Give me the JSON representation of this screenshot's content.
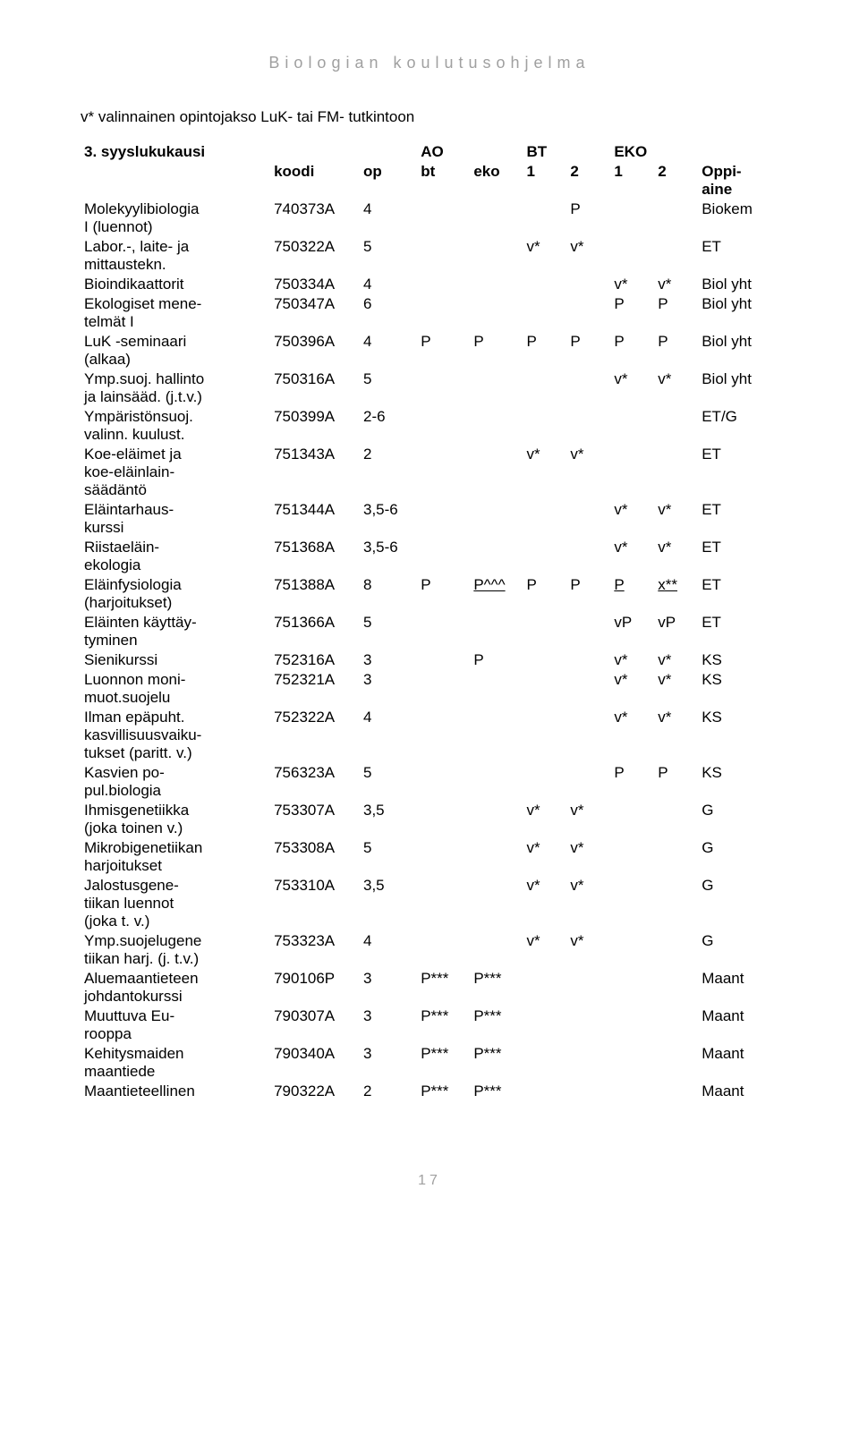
{
  "page": {
    "header": "Biologian koulutusohjelma",
    "intro": "v* valinnainen opintojakso LuK- tai FM- tutkintoon",
    "tableTitle": "3. syyslukukausi",
    "pageNumber": "17",
    "groupHeaders": {
      "ao": "AO",
      "bt": "BT",
      "eko": "EKO"
    },
    "columns": {
      "name": "",
      "koodi": "koodi",
      "op": "op",
      "bt": "bt",
      "eko": "eko",
      "c1a": "1",
      "c2a": "2",
      "c1b": "1",
      "c2b": "2",
      "oppi": "Oppi-\naine"
    },
    "rows": [
      {
        "name": "Molekyylibiologia\nI (luennot)",
        "koodi": "740373A",
        "op": "4",
        "bt": "",
        "eko": "",
        "c1a": "",
        "c2a": "P",
        "c1b": "",
        "c2b": "",
        "oppi": "Biokem"
      },
      {
        "name": "Labor.-, laite- ja\nmittaustekn.",
        "koodi": "750322A",
        "op": "5",
        "bt": "",
        "eko": "",
        "c1a": "v*",
        "c2a": "v*",
        "c1b": "",
        "c2b": "",
        "oppi": "ET"
      },
      {
        "name": "Bioindikaattorit",
        "koodi": "750334A",
        "op": "4",
        "bt": "",
        "eko": "",
        "c1a": "",
        "c2a": "",
        "c1b": "v*",
        "c2b": "v*",
        "oppi": "Biol yht"
      },
      {
        "name": "Ekologiset mene-\ntelmät I",
        "koodi": "750347A",
        "op": "6",
        "bt": "",
        "eko": "",
        "c1a": "",
        "c2a": "",
        "c1b": "P",
        "c2b": "P",
        "oppi": "Biol yht"
      },
      {
        "name": "LuK -seminaari\n(alkaa)",
        "koodi": "750396A",
        "op": "4",
        "bt": "P",
        "eko": "P",
        "c1a": "P",
        "c2a": "P",
        "c1b": "P",
        "c2b": "P",
        "oppi": "Biol yht"
      },
      {
        "name": "Ymp.suoj. hallinto\nja lainsääd. (j.t.v.)",
        "koodi": "750316A",
        "op": "5",
        "bt": "",
        "eko": "",
        "c1a": "",
        "c2a": "",
        "c1b": "v*",
        "c2b": "v*",
        "oppi": "Biol yht"
      },
      {
        "name": "Ympäristönsuoj.\nvalinn. kuulust.",
        "koodi": "750399A",
        "op": "2-6",
        "bt": "",
        "eko": "",
        "c1a": "",
        "c2a": "",
        "c1b": "",
        "c2b": "",
        "oppi": "ET/G"
      },
      {
        "name": "Koe-eläimet ja\nkoe-eläinlain-\nsäädäntö",
        "koodi": "751343A",
        "op": "2",
        "bt": "",
        "eko": "",
        "c1a": "v*",
        "c2a": "v*",
        "c1b": "",
        "c2b": "",
        "oppi": "ET"
      },
      {
        "name": "Eläintarhaus-\nkurssi",
        "koodi": "751344A",
        "op": "3,5-6",
        "bt": "",
        "eko": "",
        "c1a": "",
        "c2a": "",
        "c1b": "v*",
        "c2b": "v*",
        "oppi": "ET"
      },
      {
        "name": "Riistaeläin-\nekologia",
        "koodi": "751368A",
        "op": "3,5-6",
        "bt": "",
        "eko": "",
        "c1a": "",
        "c2a": "",
        "c1b": "v*",
        "c2b": "v*",
        "oppi": "ET"
      },
      {
        "name": "Eläinfysiologia\n(harjoitukset)",
        "koodi": "751388A",
        "op": "8",
        "bt": "P",
        "eko": "P^^^",
        "c1a": "P",
        "c2a": "P",
        "c1b": "P",
        "c2b": "x**",
        "oppi": "ET",
        "underline": [
          "eko",
          "c1b",
          "c2b"
        ]
      },
      {
        "name": "Eläinten käyttäy-\ntyminen",
        "koodi": "751366A",
        "op": "5",
        "bt": "",
        "eko": "",
        "c1a": "",
        "c2a": "",
        "c1b": "vP",
        "c2b": "vP",
        "oppi": "ET"
      },
      {
        "name": "Sienikurssi",
        "koodi": "752316A",
        "op": "3",
        "bt": "",
        "eko": "P",
        "c1a": "",
        "c2a": "",
        "c1b": "v*",
        "c2b": "v*",
        "oppi": "KS"
      },
      {
        "name": "Luonnon moni-\nmuot.suojelu",
        "koodi": "752321A",
        "op": "3",
        "bt": "",
        "eko": "",
        "c1a": "",
        "c2a": "",
        "c1b": "v*",
        "c2b": "v*",
        "oppi": "KS"
      },
      {
        "name": "Ilman epäpuht.\nkasvillisuusvaiku-\ntukset (paritt. v.)",
        "koodi": "752322A",
        "op": "4",
        "bt": "",
        "eko": "",
        "c1a": "",
        "c2a": "",
        "c1b": "v*",
        "c2b": "v*",
        "oppi": "KS"
      },
      {
        "name": "Kasvien po-\npul.biologia",
        "koodi": "756323A",
        "op": "5",
        "bt": "",
        "eko": "",
        "c1a": "",
        "c2a": "",
        "c1b": "P",
        "c2b": "P",
        "oppi": "KS"
      },
      {
        "name": "Ihmisgenetiikka\n(joka toinen v.)",
        "koodi": "753307A",
        "op": "3,5",
        "bt": "",
        "eko": "",
        "c1a": "v*",
        "c2a": "v*",
        "c1b": "",
        "c2b": "",
        "oppi": "G"
      },
      {
        "name": "Mikrobigenetiikan\nharjoitukset",
        "koodi": "753308A",
        "op": "5",
        "bt": "",
        "eko": "",
        "c1a": "v*",
        "c2a": "v*",
        "c1b": "",
        "c2b": "",
        "oppi": "G"
      },
      {
        "name": "Jalostusgene-\ntiikan luennot\n(joka t. v.)",
        "koodi": "753310A",
        "op": "3,5",
        "bt": "",
        "eko": "",
        "c1a": "v*",
        "c2a": "v*",
        "c1b": "",
        "c2b": "",
        "oppi": "G"
      },
      {
        "name": "Ymp.suojelugene\ntiikan harj. (j. t.v.)",
        "koodi": "753323A",
        "op": "4",
        "bt": "",
        "eko": "",
        "c1a": "v*",
        "c2a": "v*",
        "c1b": "",
        "c2b": "",
        "oppi": "G"
      },
      {
        "name": "Aluemaantieteen\njohdantokurssi",
        "koodi": "790106P",
        "op": "3",
        "bt": "P***",
        "eko": "P***",
        "c1a": "",
        "c2a": "",
        "c1b": "",
        "c2b": "",
        "oppi": "Maant"
      },
      {
        "name": "Muuttuva Eu-\nrooppa",
        "koodi": "790307A",
        "op": "3",
        "bt": "P***",
        "eko": "P***",
        "c1a": "",
        "c2a": "",
        "c1b": "",
        "c2b": "",
        "oppi": "Maant"
      },
      {
        "name": "Kehitysmaiden\nmaantiede",
        "koodi": "790340A",
        "op": "3",
        "bt": "P***",
        "eko": "P***",
        "c1a": "",
        "c2a": "",
        "c1b": "",
        "c2b": "",
        "oppi": "Maant"
      },
      {
        "name": "Maantieteellinen",
        "koodi": "790322A",
        "op": "2",
        "bt": "P***",
        "eko": "P***",
        "c1a": "",
        "c2a": "",
        "c1b": "",
        "c2b": "",
        "oppi": "Maant"
      }
    ],
    "colors": {
      "headerText": "#a0a0a0",
      "bodyText": "#000000",
      "background": "#ffffff"
    },
    "typography": {
      "headerLetterSpacing": 6,
      "headerFontSize": 18,
      "bodyFontSize": 17,
      "pagenumFontSize": 16
    }
  }
}
